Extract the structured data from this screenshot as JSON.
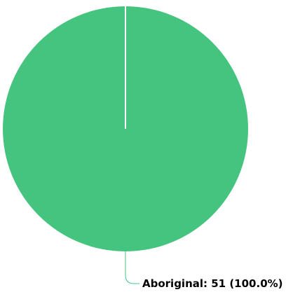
{
  "chart_data": {
    "type": "pie",
    "categories": [
      "Aboriginal"
    ],
    "values": [
      51
    ],
    "percentages": [
      100.0
    ],
    "colors": [
      "#45c47f"
    ],
    "labels": [
      "Aboriginal: 51 (100.0%)"
    ],
    "title": "",
    "legend": "none"
  }
}
